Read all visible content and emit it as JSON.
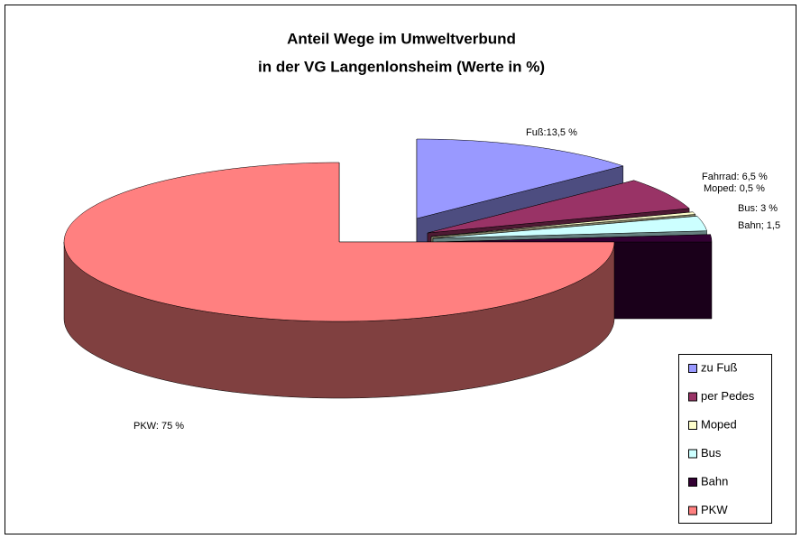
{
  "chart_data": {
    "type": "pie3d",
    "title": [
      "Anteil Wege im Umweltverbund",
      "in der VG Langenlonsheim (Werte in %)"
    ],
    "categories": [
      "zu Fuß",
      "per Pedes",
      "Moped",
      "Bus",
      "Bahn",
      "PKW"
    ],
    "values": [
      13.5,
      6.5,
      0.5,
      3,
      1.5,
      75
    ],
    "value_labels": [
      "Fuß:13,5 %",
      "Fahrrad: 6,5 %",
      "Moped: 0,5 %",
      "Bus: 3 %",
      "Bahn; 1,5",
      "PKW: 75 %"
    ],
    "colors": [
      "#9999ff",
      "#993366",
      "#ffffcc",
      "#ccffff",
      "#330033",
      "#ff8080"
    ],
    "legend": "right"
  }
}
